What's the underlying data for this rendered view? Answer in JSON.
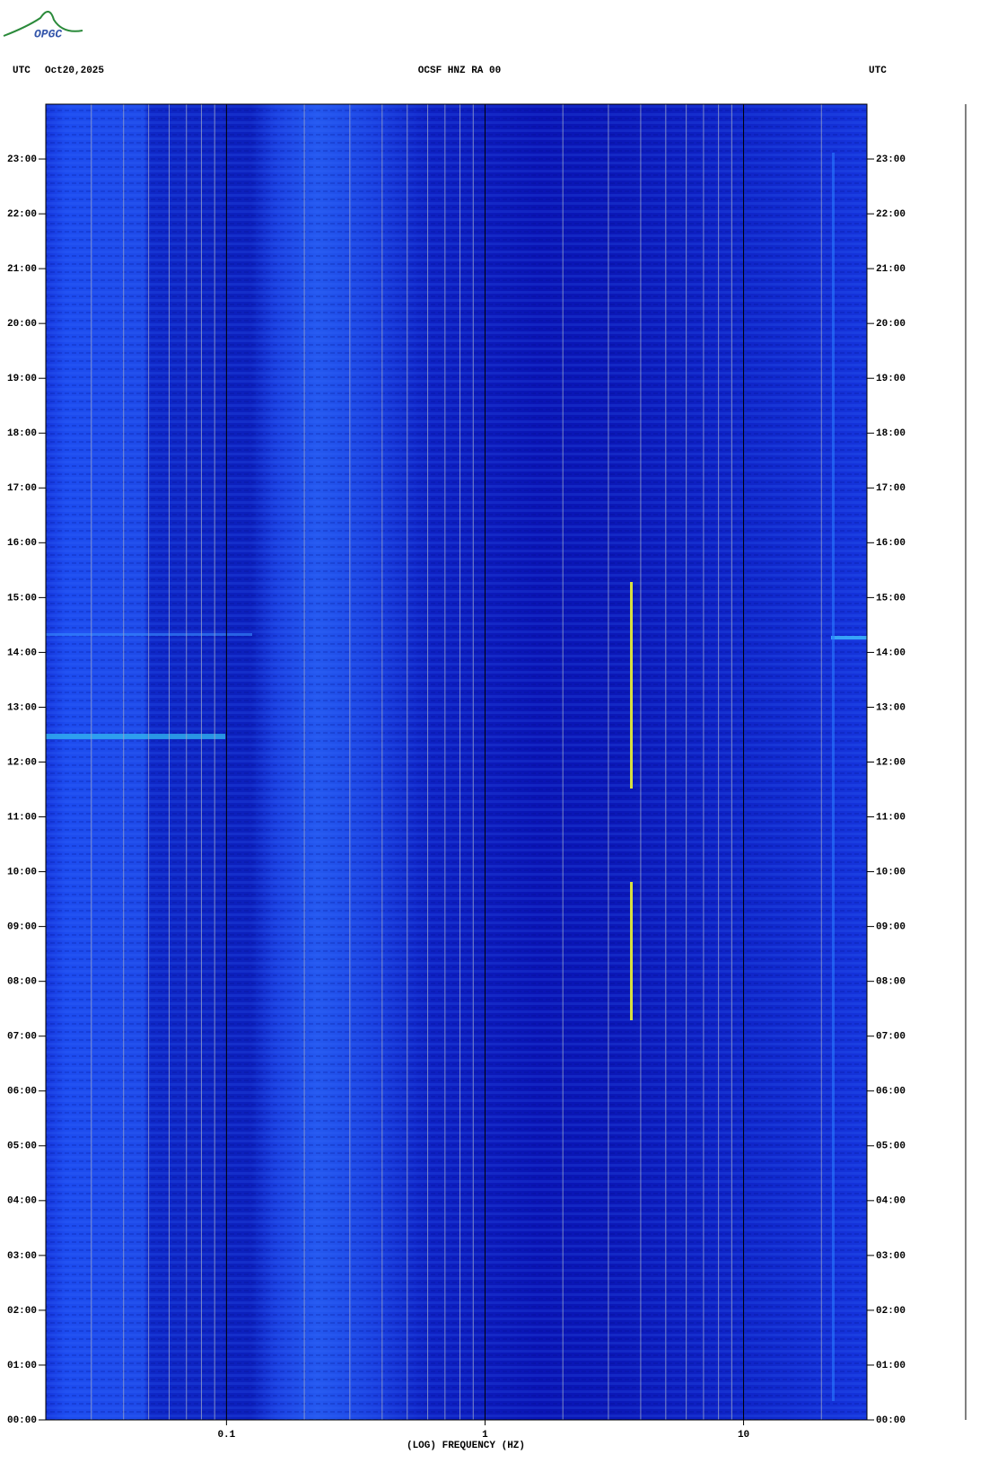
{
  "logo": "OPGC",
  "chart_data": {
    "type": "spectrogram",
    "title": "OCSF HNZ RA 00",
    "left_label": "UTC",
    "date": "Oct20,2025",
    "right_label": "UTC",
    "x_label": "(LOG) FREQUENCY (HZ)",
    "xscale": "log",
    "xlim": [
      0.02,
      30
    ],
    "xticks": [
      0.1,
      1,
      10
    ],
    "x_grid_lines": [
      0.03,
      0.04,
      0.05,
      0.06,
      0.07,
      0.08,
      0.09,
      0.2,
      0.3,
      0.4,
      0.5,
      0.6,
      0.7,
      0.8,
      0.9,
      2,
      3,
      4,
      5,
      6,
      7,
      8,
      9,
      20
    ],
    "ylim": [
      0,
      24
    ],
    "yticks": [
      {
        "value": 0,
        "label": "00:00"
      },
      {
        "value": 1,
        "label": "01:00"
      },
      {
        "value": 2,
        "label": "02:00"
      },
      {
        "value": 3,
        "label": "03:00"
      },
      {
        "value": 4,
        "label": "04:00"
      },
      {
        "value": 5,
        "label": "05:00"
      },
      {
        "value": 6,
        "label": "06:00"
      },
      {
        "value": 7,
        "label": "07:00"
      },
      {
        "value": 8,
        "label": "08:00"
      },
      {
        "value": 9,
        "label": "09:00"
      },
      {
        "value": 10,
        "label": "10:00"
      },
      {
        "value": 11,
        "label": "11:00"
      },
      {
        "value": 12,
        "label": "12:00"
      },
      {
        "value": 13,
        "label": "13:00"
      },
      {
        "value": 14,
        "label": "14:00"
      },
      {
        "value": 15,
        "label": "15:00"
      },
      {
        "value": 16,
        "label": "16:00"
      },
      {
        "value": 17,
        "label": "17:00"
      },
      {
        "value": 18,
        "label": "18:00"
      },
      {
        "value": 19,
        "label": "19:00"
      },
      {
        "value": 20,
        "label": "20:00"
      },
      {
        "value": 21,
        "label": "21:00"
      },
      {
        "value": 22,
        "label": "22:00"
      },
      {
        "value": 23,
        "label": "23:00"
      }
    ],
    "grid": true
  }
}
